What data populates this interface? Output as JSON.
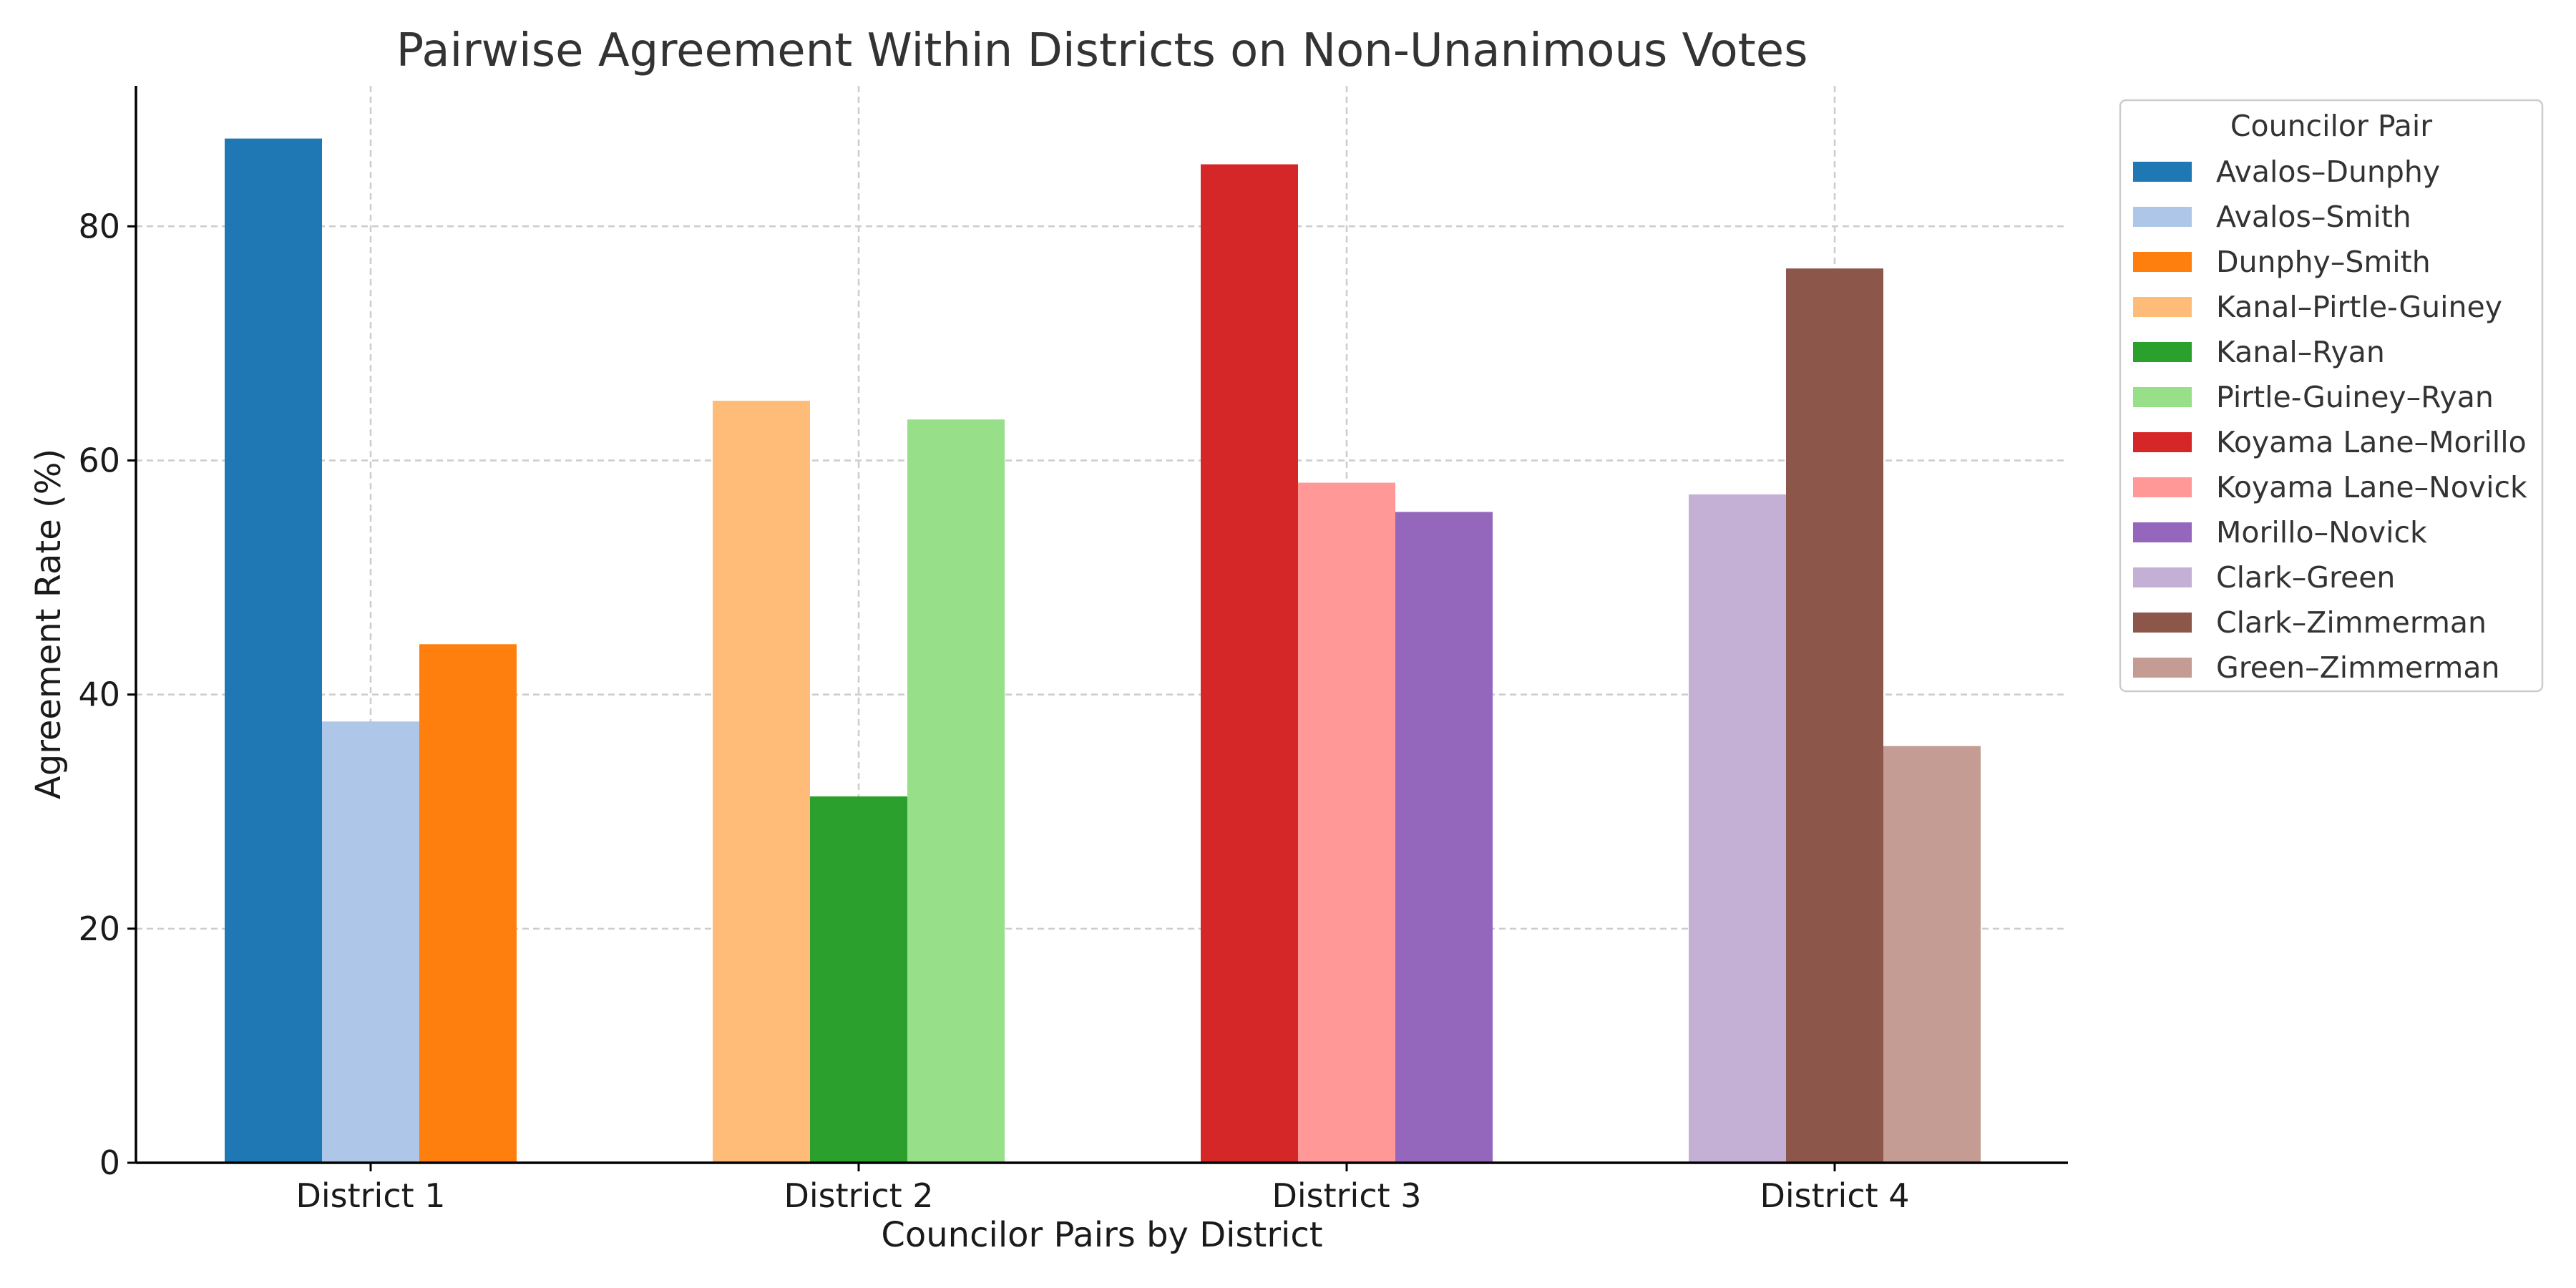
{
  "chart_data": {
    "type": "bar",
    "title": "Pairwise Agreement Within Districts on Non-Unanimous Votes",
    "xlabel": "Councilor Pairs by District",
    "ylabel": "Agreement Rate (%)",
    "ylim": [
      0,
      92
    ],
    "yticks": [
      0,
      20,
      40,
      60,
      80
    ],
    "grid": true,
    "legend_title": "Councilor Pair",
    "legend_position": "outside-right",
    "categories": [
      "District 1",
      "District 2",
      "District 3",
      "District 4"
    ],
    "series": [
      {
        "name": "Avalos–Dunphy",
        "district": 0,
        "slot": 0,
        "value": 87.5,
        "color": "#1f77b4"
      },
      {
        "name": "Avalos–Smith",
        "district": 0,
        "slot": 1,
        "value": 37.7,
        "color": "#aec7e8"
      },
      {
        "name": "Dunphy–Smith",
        "district": 0,
        "slot": 2,
        "value": 44.3,
        "color": "#ff7f0e"
      },
      {
        "name": "Kanal–Pirtle-Guiney",
        "district": 1,
        "slot": 0,
        "value": 65.1,
        "color": "#ffbb78"
      },
      {
        "name": "Kanal–Ryan",
        "district": 1,
        "slot": 1,
        "value": 31.3,
        "color": "#2ca02c"
      },
      {
        "name": "Pirtle-Guiney–Ryan",
        "district": 1,
        "slot": 2,
        "value": 63.5,
        "color": "#98df8a"
      },
      {
        "name": "Koyama Lane–Morillo",
        "district": 2,
        "slot": 0,
        "value": 85.3,
        "color": "#d62728"
      },
      {
        "name": "Koyama Lane–Novick",
        "district": 2,
        "slot": 1,
        "value": 58.1,
        "color": "#ff9896"
      },
      {
        "name": "Morillo–Novick",
        "district": 2,
        "slot": 2,
        "value": 55.6,
        "color": "#9467bd"
      },
      {
        "name": "Clark–Green",
        "district": 3,
        "slot": 0,
        "value": 57.1,
        "color": "#c5b0d5"
      },
      {
        "name": "Clark–Zimmerman",
        "district": 3,
        "slot": 1,
        "value": 76.4,
        "color": "#8c564b"
      },
      {
        "name": "Green–Zimmerman",
        "district": 3,
        "slot": 2,
        "value": 35.6,
        "color": "#c49c94"
      }
    ]
  }
}
